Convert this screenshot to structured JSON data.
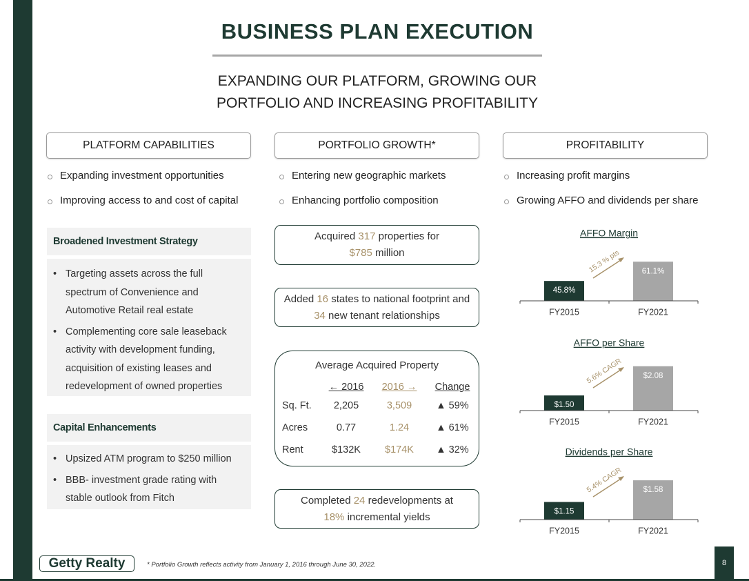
{
  "title": "BUSINESS PLAN EXECUTION",
  "subtitle": [
    "EXPANDING OUR PLATFORM, GROWING OUR",
    "PORTFOLIO AND INCREASING PROFITABILITY"
  ],
  "columns": [
    {
      "heading": "PLATFORM CAPABILITIES",
      "points": [
        "Expanding investment opportunities",
        "Improving access to and cost of capital"
      ]
    },
    {
      "heading": "PORTFOLIO GROWTH*",
      "points": [
        "Entering new geographic markets",
        "Enhancing portfolio composition"
      ]
    },
    {
      "heading": "PROFITABILITY",
      "points": [
        "Increasing profit margins",
        "Growing AFFO and dividends per share"
      ]
    }
  ],
  "platform": {
    "sections": [
      {
        "heading": "Broadened Investment Strategy",
        "bullets": [
          "Targeting assets across the full spectrum of Convenience and Automotive Retail real estate",
          "Complementing core sale leaseback activity with development funding, acquisition of existing leases and redevelopment of owned properties"
        ]
      },
      {
        "heading": "Capital Enhancements",
        "bullets": [
          "Upsized ATM program to $250 million",
          "BBB- investment grade rating with stable outlook from Fitch"
        ]
      }
    ]
  },
  "portfolio": {
    "highlights": [
      [
        "Acquired ",
        "317",
        " properties for ",
        "$785",
        " million"
      ],
      [
        "Added ",
        "16",
        " states to national footprint and ",
        "34",
        " new tenant relationships"
      ],
      [
        "Completed ",
        "24",
        " redevelopments at ",
        "18%",
        " incremental yields"
      ]
    ],
    "table": {
      "title": "Average Acquired Property",
      "header": [
        "← 2016",
        "2016 →",
        "Change"
      ],
      "rows": [
        [
          "Sq. Ft.",
          "2,205",
          "3,509",
          "▲ 59%"
        ],
        [
          "Acres",
          "0.77",
          "1.24",
          "▲ 61%"
        ],
        [
          "Rent",
          "$132K",
          "$174K",
          "▲ 32%"
        ]
      ]
    }
  },
  "footer": {
    "logo": "Getty Realty",
    "footnote": "* Portfolio Growth reflects activity from January 1, 2016 through June 30, 2022.",
    "page": "8"
  },
  "chart_data": [
    {
      "type": "bar",
      "title": "AFFO Margin",
      "categories": [
        "FY2015",
        "FY2021"
      ],
      "values": [
        45.8,
        61.1
      ],
      "value_labels": [
        "45.8%",
        "61.1%"
      ],
      "colors": [
        "#1e3a32",
        "#a6a6a6"
      ],
      "annotation": "15.3 % pts",
      "ylim": [
        30,
        70
      ]
    },
    {
      "type": "bar",
      "title": "AFFO per Share",
      "categories": [
        "FY2015",
        "FY2021"
      ],
      "values": [
        1.5,
        2.08
      ],
      "value_labels": [
        "$1.50",
        "$2.08"
      ],
      "colors": [
        "#1e3a32",
        "#a6a6a6"
      ],
      "annotation": "5.6% CAGR",
      "ylim": [
        1.2,
        2.2
      ]
    },
    {
      "type": "bar",
      "title": "Dividends per Share",
      "categories": [
        "FY2015",
        "FY2021"
      ],
      "values": [
        1.15,
        1.58
      ],
      "value_labels": [
        "$1.15",
        "$1.58"
      ],
      "colors": [
        "#1e3a32",
        "#a6a6a6"
      ],
      "annotation": "5.4% CAGR",
      "ylim": [
        0.8,
        1.8
      ]
    }
  ]
}
